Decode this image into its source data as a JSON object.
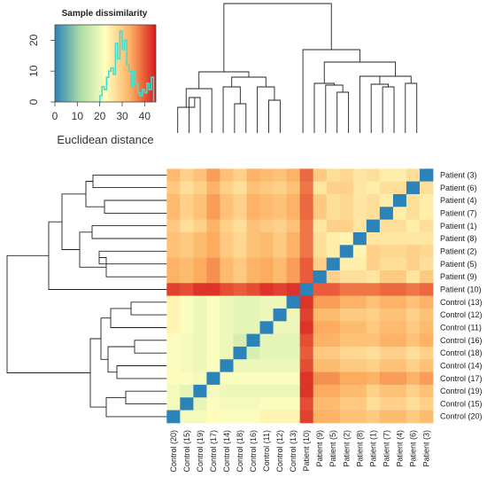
{
  "colors": {
    "scale": [
      "#2b83ba",
      "#abdda4",
      "#ffffbf",
      "#fdae61",
      "#d7191c"
    ],
    "histogram_line": "#40e0d0",
    "diagonal": "#2b83ba"
  },
  "chart_data": [
    {
      "type": "heatmap",
      "title": "",
      "row_labels": [
        "Patient (3)",
        "Patient (6)",
        "Patient (4)",
        "Patient (7)",
        "Patient (1)",
        "Patient (8)",
        "Patient (2)",
        "Patient (5)",
        "Patient (9)",
        "Patient (10)",
        "Control (13)",
        "Control (12)",
        "Control (11)",
        "Control (16)",
        "Control (18)",
        "Control (14)",
        "Control (17)",
        "Control (19)",
        "Control (15)",
        "Control (20)"
      ],
      "col_labels": [
        "Control (20)",
        "Control (15)",
        "Control (19)",
        "Control (17)",
        "Control (14)",
        "Control (18)",
        "Control (16)",
        "Control (11)",
        "Control (12)",
        "Control (13)",
        "Patient (10)",
        "Patient (9)",
        "Patient (5)",
        "Patient (2)",
        "Patient (8)",
        "Patient (1)",
        "Patient (7)",
        "Patient (4)",
        "Patient (6)",
        "Patient (3)"
      ],
      "value_range": [
        0,
        45
      ],
      "values": [
        [
          32,
          29,
          31,
          35,
          31,
          29,
          33,
          32,
          31,
          33,
          39,
          30,
          27,
          28,
          26,
          27,
          25,
          25,
          27,
          0
        ],
        [
          30,
          27,
          29,
          33,
          29,
          27,
          31,
          30,
          29,
          31,
          38,
          26,
          29,
          29,
          26,
          25,
          27,
          27,
          0,
          27
        ],
        [
          32,
          29,
          31,
          35,
          31,
          29,
          33,
          32,
          31,
          33,
          39,
          30,
          27,
          28,
          26,
          27,
          25,
          0,
          27,
          25
        ],
        [
          32,
          29,
          31,
          35,
          31,
          29,
          33,
          32,
          31,
          33,
          39,
          30,
          27,
          28,
          26,
          27,
          0,
          25,
          27,
          25
        ],
        [
          30,
          27,
          29,
          33,
          29,
          27,
          31,
          30,
          29,
          31,
          38,
          26,
          29,
          29,
          26,
          0,
          27,
          27,
          25,
          27
        ],
        [
          31,
          30,
          32,
          34,
          30,
          28,
          31,
          32,
          30,
          33,
          38,
          27,
          25,
          24,
          0,
          26,
          26,
          26,
          26,
          26
        ],
        [
          31,
          30,
          32,
          34,
          30,
          28,
          31,
          32,
          30,
          33,
          38,
          27,
          25,
          0,
          24,
          29,
          28,
          28,
          29,
          28
        ],
        [
          33,
          32,
          34,
          36,
          32,
          30,
          33,
          34,
          32,
          35,
          40,
          29,
          0,
          25,
          25,
          29,
          27,
          27,
          29,
          27
        ],
        [
          33,
          32,
          34,
          36,
          32,
          30,
          33,
          34,
          32,
          35,
          40,
          0,
          29,
          27,
          27,
          26,
          30,
          30,
          26,
          30
        ],
        [
          42,
          41,
          43,
          43,
          41,
          40,
          41,
          43,
          42,
          43,
          0,
          40,
          40,
          38,
          38,
          38,
          39,
          39,
          38,
          39
        ],
        [
          24,
          22,
          20,
          22,
          20,
          19,
          19,
          20,
          20,
          0,
          43,
          35,
          35,
          33,
          33,
          31,
          33,
          33,
          31,
          33
        ],
        [
          24,
          22,
          20,
          22,
          20,
          19,
          19,
          20,
          0,
          20,
          42,
          32,
          32,
          30,
          30,
          29,
          31,
          31,
          29,
          31
        ],
        [
          24,
          22,
          20,
          22,
          20,
          19,
          19,
          0,
          20,
          20,
          43,
          34,
          34,
          32,
          32,
          30,
          32,
          32,
          30,
          32
        ],
        [
          22,
          21,
          20,
          22,
          20,
          17,
          0,
          19,
          19,
          19,
          41,
          33,
          33,
          31,
          31,
          31,
          33,
          33,
          31,
          33
        ],
        [
          22,
          21,
          20,
          22,
          20,
          0,
          17,
          19,
          19,
          19,
          40,
          30,
          30,
          28,
          28,
          27,
          29,
          29,
          27,
          29
        ],
        [
          22,
          21,
          20,
          22,
          0,
          20,
          20,
          20,
          20,
          20,
          41,
          32,
          32,
          30,
          30,
          29,
          31,
          31,
          29,
          31
        ],
        [
          23,
          22,
          21,
          0,
          22,
          22,
          22,
          22,
          22,
          22,
          43,
          36,
          36,
          34,
          34,
          33,
          35,
          35,
          33,
          35
        ],
        [
          21,
          19,
          0,
          21,
          20,
          20,
          20,
          20,
          20,
          20,
          43,
          34,
          34,
          32,
          32,
          29,
          31,
          31,
          29,
          31
        ],
        [
          21,
          0,
          19,
          22,
          21,
          21,
          21,
          22,
          22,
          22,
          41,
          32,
          32,
          30,
          30,
          27,
          29,
          29,
          27,
          29
        ],
        [
          0,
          21,
          21,
          23,
          22,
          22,
          22,
          24,
          24,
          24,
          42,
          33,
          33,
          31,
          31,
          30,
          32,
          32,
          30,
          32
        ]
      ]
    },
    {
      "type": "histogram",
      "title": "Sample dissimilarity",
      "xlabel": "Euclidean distance",
      "ylabel": "",
      "xlim": [
        0,
        45
      ],
      "ylim": [
        0,
        25
      ],
      "xticks": [
        "0",
        "10",
        "20",
        "30",
        "40"
      ],
      "yticks": [
        "0",
        "10",
        "20"
      ],
      "bin_width": 1,
      "bins_start": 20,
      "counts": [
        2,
        5,
        4,
        8,
        10,
        11,
        9,
        19,
        14,
        23,
        17,
        20,
        12,
        10,
        5,
        10,
        6,
        3,
        2,
        4,
        3,
        6,
        4,
        8
      ]
    }
  ]
}
